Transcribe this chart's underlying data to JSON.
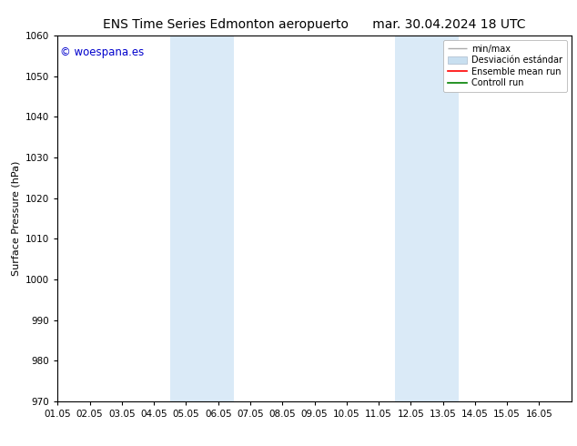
{
  "title_left": "ENS Time Series Edmonton aeropuerto",
  "title_right": "mar. 30.04.2024 18 UTC",
  "ylabel": "Surface Pressure (hPa)",
  "ylim": [
    970,
    1060
  ],
  "yticks": [
    970,
    980,
    990,
    1000,
    1010,
    1020,
    1030,
    1040,
    1050,
    1060
  ],
  "xlim_start": 0,
  "xlim_end": 16,
  "xtick_positions": [
    0,
    1,
    2,
    3,
    4,
    5,
    6,
    7,
    8,
    9,
    10,
    11,
    12,
    13,
    14,
    15
  ],
  "xtick_labels": [
    "01.05",
    "02.05",
    "03.05",
    "04.05",
    "05.05",
    "06.05",
    "07.05",
    "08.05",
    "09.05",
    "10.05",
    "11.05",
    "12.05",
    "13.05",
    "14.05",
    "15.05",
    "16.05"
  ],
  "watermark": "© woespana.es",
  "watermark_color": "#0000cc",
  "bg_color": "#ffffff",
  "plot_bg_color": "#ffffff",
  "shaded_regions": [
    {
      "x_start": 3.5,
      "x_end": 5.5,
      "color": "#daeaf7"
    },
    {
      "x_start": 10.5,
      "x_end": 12.5,
      "color": "#daeaf7"
    }
  ],
  "legend_line1_label": "min/max",
  "legend_line2_label": "Desviación estándar",
  "legend_line3_label": "Ensemble mean run",
  "legend_line4_label": "Controll run",
  "legend_color_gray": "#aaaaaa",
  "legend_color_blue": "#c8dff0",
  "legend_color_red": "#ff0000",
  "legend_color_green": "#008000",
  "title_fontsize": 10,
  "axis_fontsize": 8,
  "tick_fontsize": 7.5,
  "watermark_fontsize": 8.5
}
